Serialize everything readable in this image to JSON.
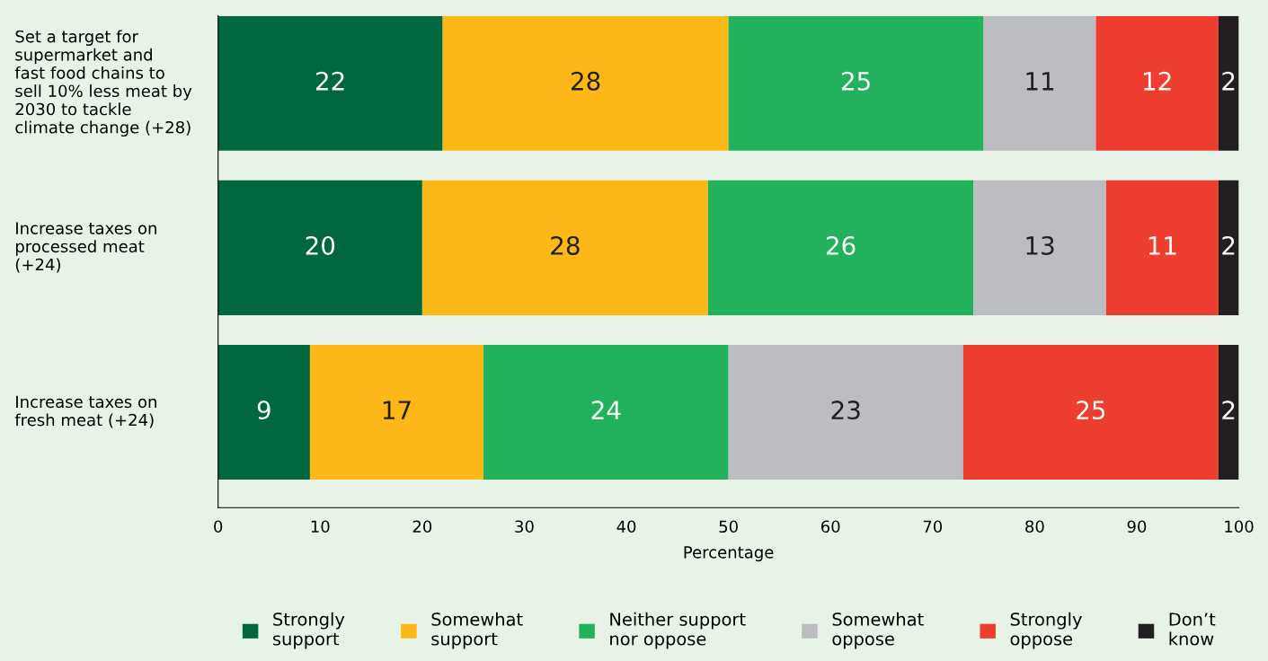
{
  "chart_data": {
    "type": "bar",
    "orientation": "horizontal",
    "stacked": true,
    "data_labels": true,
    "xlabel": "Percentage",
    "categories": [
      "Set a target for\nsupermarket and\nfast food chains to\nsell 10% less meat by\n2030 to tackle\nclimate change (+28)",
      "Increase taxes on\nprocessed meat\n(+24)",
      "Increase taxes on\nfresh meat (+24)"
    ],
    "series": [
      {
        "name": "Strongly\nsupport",
        "color": "#00673f",
        "values": [
          22,
          20,
          9
        ]
      },
      {
        "name": "Somewhat\nsupport",
        "color": "#fbb817",
        "values": [
          28,
          28,
          17
        ]
      },
      {
        "name": "Neither support\nnor oppose",
        "color": "#22b25b",
        "values": [
          25,
          26,
          24
        ]
      },
      {
        "name": "Somewhat\noppose",
        "color": "#bcbdc0",
        "values": [
          11,
          13,
          23
        ]
      },
      {
        "name": "Strongly\noppose",
        "color": "#ee3e2f",
        "values": [
          12,
          11,
          25
        ]
      },
      {
        "name": "Don’t\nknow",
        "color": "#231f20",
        "values": [
          2,
          2,
          2
        ]
      }
    ],
    "xlim": [
      0,
      100
    ],
    "xticks": [
      0,
      10,
      20,
      30,
      40,
      50,
      60,
      70,
      80,
      90,
      100
    ],
    "grid": false,
    "legend": "bottom"
  }
}
